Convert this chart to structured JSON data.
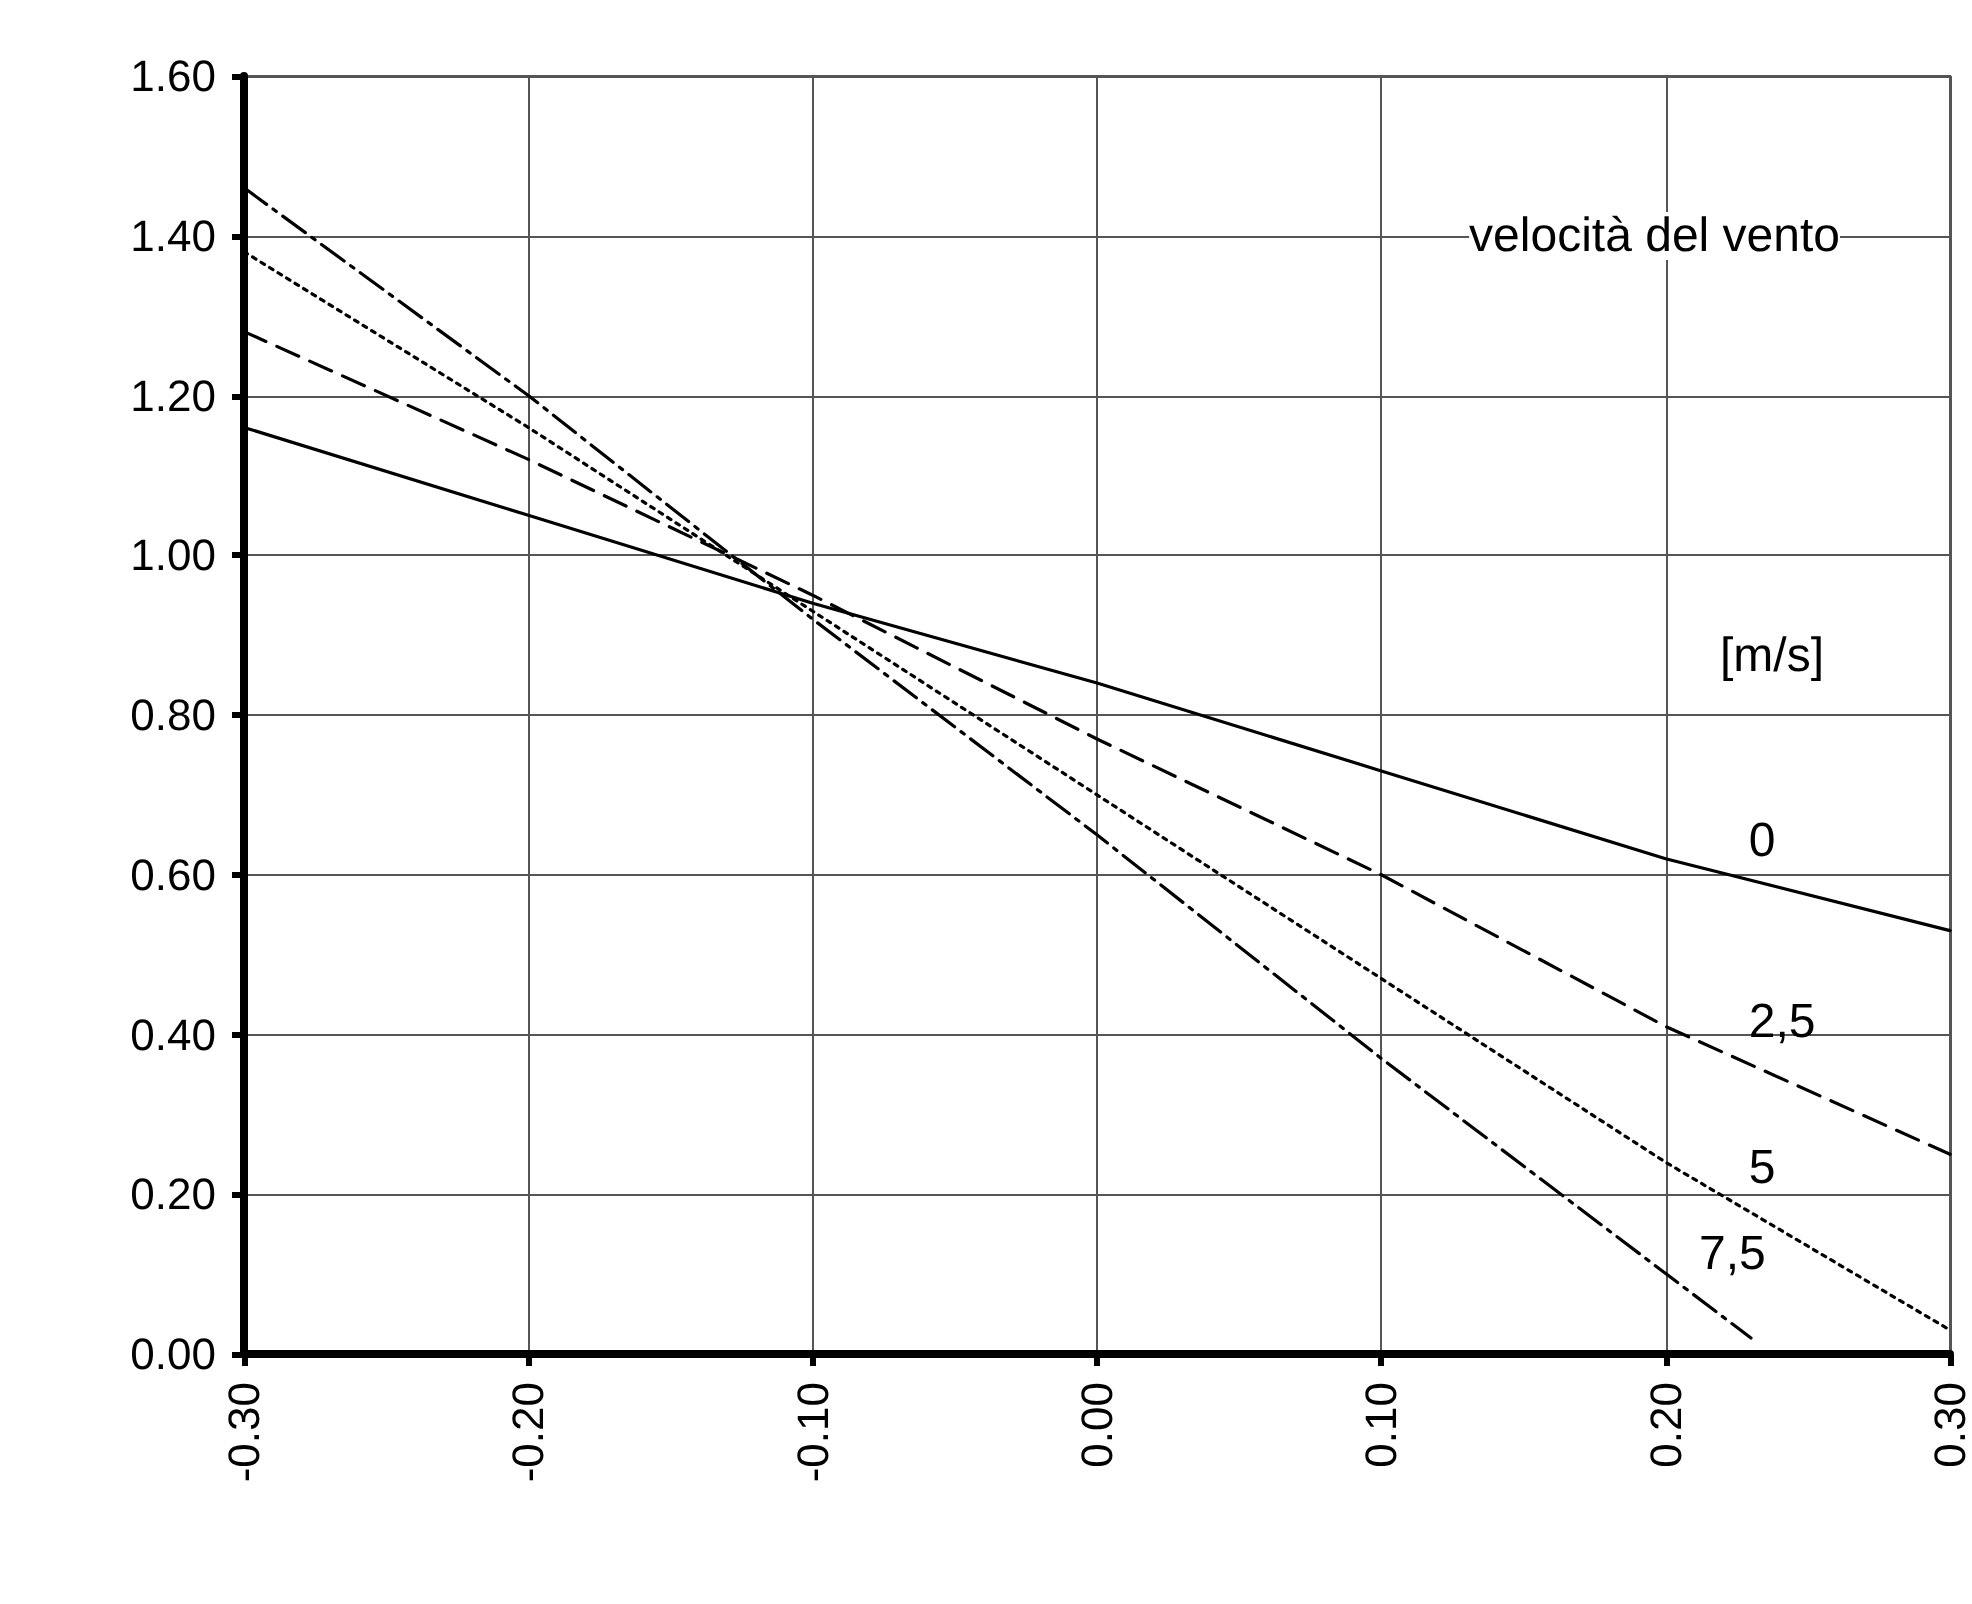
{
  "chart_data": {
    "type": "line",
    "legend_title": "velocità del vento",
    "annotations": [
      "[m/s]"
    ],
    "xlim": [
      -0.3,
      0.3
    ],
    "ylim": [
      0,
      1.6
    ],
    "xticks": [
      {
        "value": -0.3,
        "label": "-0.30"
      },
      {
        "value": -0.2,
        "label": "-0.20"
      },
      {
        "value": -0.1,
        "label": "-0.10"
      },
      {
        "value": 0,
        "label": "0.00"
      },
      {
        "value": 0.1,
        "label": "0.10"
      },
      {
        "value": 0.2,
        "label": "0.20"
      },
      {
        "value": 0.3,
        "label": "0.30"
      }
    ],
    "yticks": [
      {
        "value": 0,
        "label": "0.00"
      },
      {
        "value": 0.2,
        "label": "0.20"
      },
      {
        "value": 0.4,
        "label": "0.40"
      },
      {
        "value": 0.6,
        "label": "0.60"
      },
      {
        "value": 0.8,
        "label": "0.80"
      },
      {
        "value": 1.0,
        "label": "1.00"
      },
      {
        "value": 1.2,
        "label": "1.20"
      },
      {
        "value": 1.4,
        "label": "1.40"
      },
      {
        "value": 1.6,
        "label": "1.60"
      }
    ],
    "grid": true,
    "marker": "none",
    "legend": false,
    "series": [
      {
        "name": "0",
        "color": "#000000",
        "line_style": "solid",
        "x": [
          -0.3,
          -0.2,
          -0.1,
          0,
          0.1,
          0.2,
          0.3
        ],
        "values": [
          1.16,
          1.05,
          0.94,
          0.84,
          0.73,
          0.62,
          0.53
        ]
      },
      {
        "name": "2,5",
        "color": "#000000",
        "line_style": "dashed",
        "x": [
          -0.3,
          -0.2,
          -0.1,
          0,
          0.1,
          0.2,
          0.3
        ],
        "values": [
          1.28,
          1.12,
          0.95,
          0.77,
          0.6,
          0.41,
          0.25
        ]
      },
      {
        "name": "5",
        "color": "#000000",
        "line_style": "dotted",
        "x": [
          -0.3,
          -0.2,
          -0.1,
          0,
          0.1,
          0.2,
          0.3
        ],
        "values": [
          1.38,
          1.16,
          0.93,
          0.7,
          0.47,
          0.24,
          0.03
        ]
      },
      {
        "name": "7,5",
        "color": "#000000",
        "line_style": "dashdot",
        "x": [
          -0.3,
          -0.2,
          -0.1,
          0,
          0.1,
          0.23
        ],
        "values": [
          1.46,
          1.2,
          0.92,
          0.65,
          0.37,
          0.02
        ]
      }
    ]
  }
}
